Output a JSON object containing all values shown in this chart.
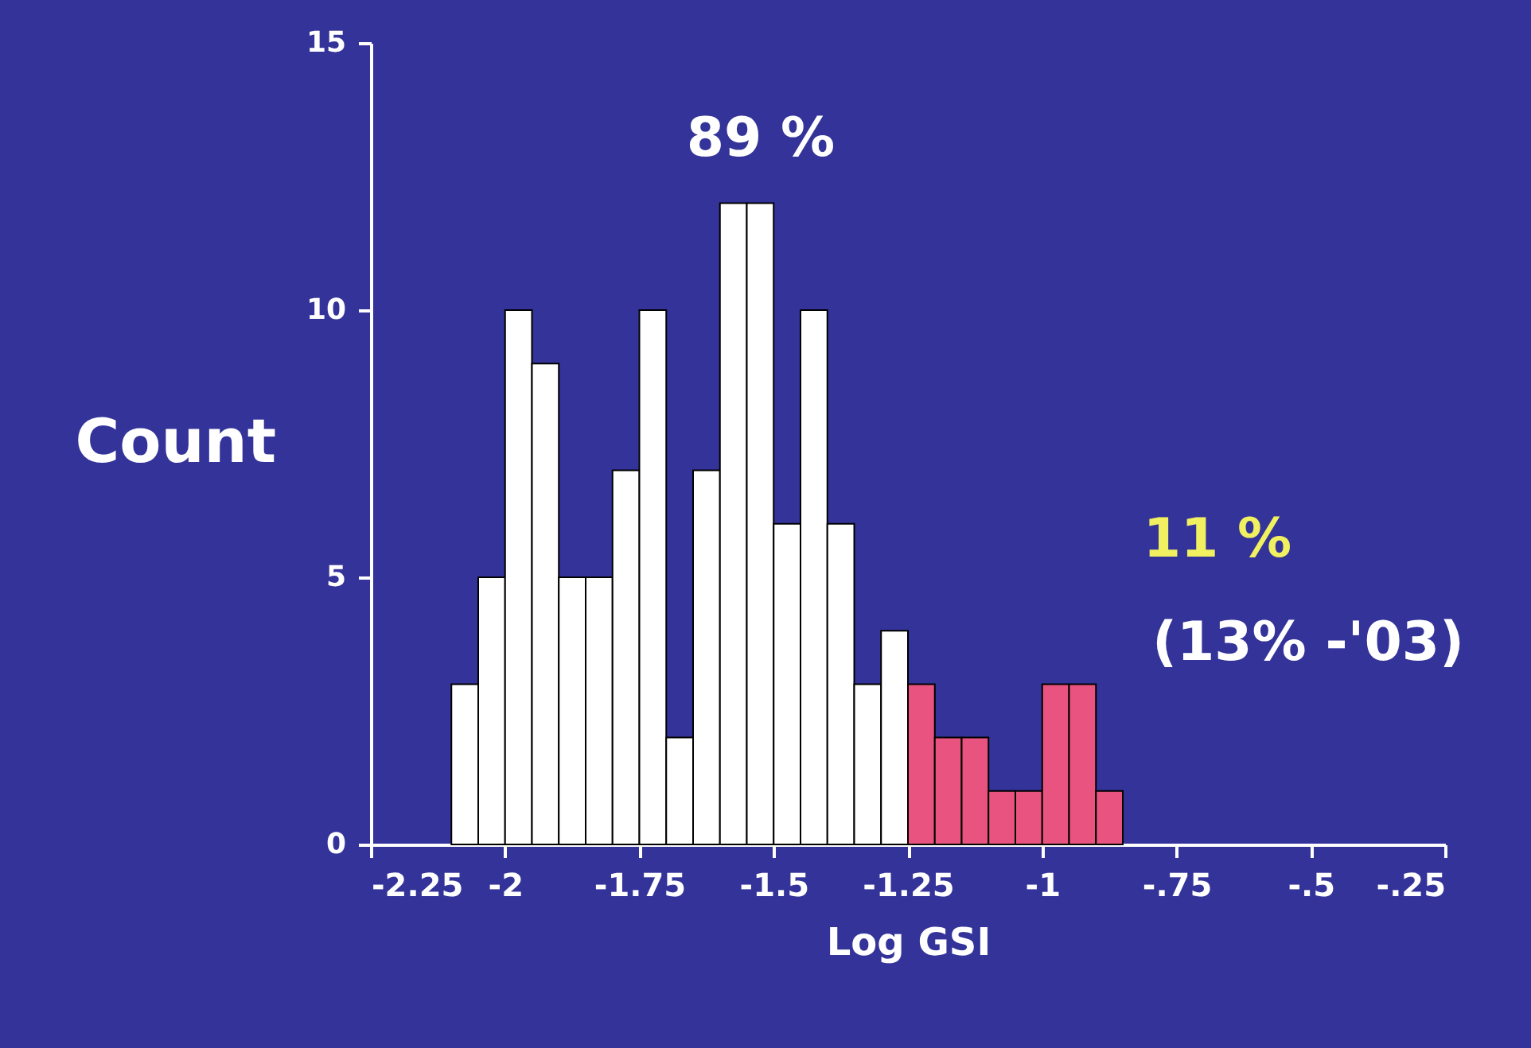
{
  "chart_data": {
    "type": "histogram",
    "xlabel": "Log GSI",
    "ylabel": "Count",
    "bins": [
      -2.1,
      -2.05,
      -2.0,
      -1.95,
      -1.9,
      -1.85,
      -1.8,
      -1.75,
      -1.7,
      -1.65,
      -1.6,
      -1.55,
      -1.5,
      -1.45,
      -1.4,
      -1.35,
      -1.3,
      -1.25,
      -1.2,
      -1.15,
      -1.1,
      -1.05,
      -1.0,
      -0.95,
      -0.9,
      -0.85
    ],
    "values": [
      3,
      5,
      10,
      9,
      5,
      5,
      7,
      10,
      2,
      7,
      12,
      12,
      6,
      10,
      6,
      3,
      4,
      3,
      2,
      2,
      1,
      1,
      3,
      3,
      1
    ],
    "colors": [
      "#ffffff",
      "#ffffff",
      "#ffffff",
      "#ffffff",
      "#ffffff",
      "#ffffff",
      "#ffffff",
      "#ffffff",
      "#ffffff",
      "#ffffff",
      "#ffffff",
      "#ffffff",
      "#ffffff",
      "#ffffff",
      "#ffffff",
      "#ffffff",
      "#ffffff",
      "#e8547f",
      "#e8547f",
      "#e8547f",
      "#e8547f",
      "#e8547f",
      "#e8547f",
      "#e8547f",
      "#e8547f"
    ],
    "xlim": [
      -2.25,
      -0.25
    ],
    "xticks": [
      {
        "value": -2.25,
        "label": "-2.25"
      },
      -2,
      {
        "value": -1.75,
        "label": "-1.75"
      },
      {
        "value": -1.5,
        "label": "-1.5"
      },
      {
        "value": -1.25,
        "label": "-1.25"
      },
      -1,
      {
        "value": -0.75,
        "label": "-.75"
      },
      {
        "value": -0.5,
        "label": "-.5"
      },
      {
        "value": -0.25,
        "label": "-.25"
      }
    ],
    "ylim": [
      0,
      15
    ],
    "yticks": [
      0,
      5,
      10,
      15
    ],
    "grid": false,
    "annotations": [
      "89 %",
      "11 %",
      "(13% -'03)"
    ]
  }
}
